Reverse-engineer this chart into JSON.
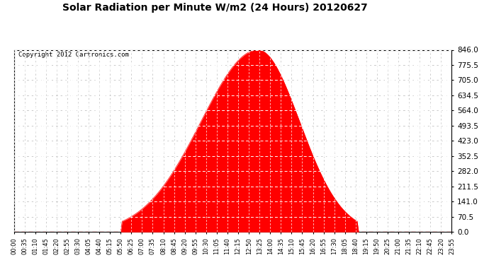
{
  "title": "Solar Radiation per Minute W/m2 (24 Hours) 20120627",
  "copyright_text": "Copyright 2012 Cartronics.com",
  "fill_color": "#FF0000",
  "line_color": "#FF0000",
  "dashed_line_color": "#FF0000",
  "background_color": "#FFFFFF",
  "plot_bg_color": "#FFFFFF",
  "grid_color_h": "#C0C0C0",
  "grid_color_v": "#C0C0C0",
  "ylim": [
    0.0,
    846.0
  ],
  "yticks": [
    0.0,
    70.5,
    141.0,
    211.5,
    282.0,
    352.5,
    423.0,
    493.5,
    564.0,
    634.5,
    705.0,
    775.5,
    846.0
  ],
  "peak_value": 846.0,
  "sunrise_idx": 71,
  "sunset_idx": 225,
  "peak_idx": 160,
  "total_points": 288,
  "tick_step": 7,
  "title_fontsize": 10,
  "ytick_fontsize": 7.5,
  "xtick_fontsize": 6.0,
  "copyright_fontsize": 6.5
}
